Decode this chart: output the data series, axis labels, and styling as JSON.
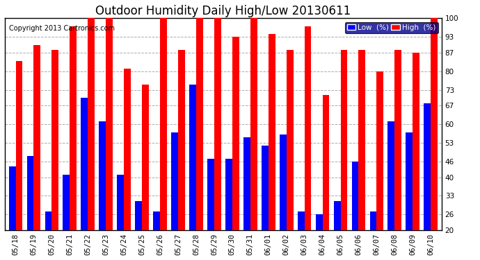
{
  "title": "Outdoor Humidity Daily High/Low 20130611",
  "copyright": "Copyright 2013 Cartronics.com",
  "categories": [
    "05/18",
    "05/19",
    "05/20",
    "05/21",
    "05/22",
    "05/23",
    "05/24",
    "05/25",
    "05/26",
    "05/27",
    "05/28",
    "05/29",
    "05/30",
    "05/31",
    "06/01",
    "06/02",
    "06/03",
    "06/04",
    "06/05",
    "06/06",
    "06/07",
    "06/08",
    "06/09",
    "06/10"
  ],
  "high_values": [
    84,
    90,
    88,
    97,
    100,
    100,
    81,
    75,
    100,
    88,
    100,
    100,
    93,
    100,
    94,
    88,
    97,
    71,
    88,
    88,
    80,
    88,
    87,
    100
  ],
  "low_values": [
    44,
    48,
    27,
    41,
    70,
    61,
    41,
    31,
    27,
    57,
    75,
    47,
    47,
    55,
    52,
    56,
    27,
    26,
    31,
    46,
    27,
    61,
    57,
    68
  ],
  "high_color": "#ff0000",
  "low_color": "#0000ff",
  "bg_color": "#ffffff",
  "plot_bg_color": "#ffffff",
  "grid_color": "#aaaaaa",
  "ylim": [
    20,
    100
  ],
  "ymin": 20,
  "yticks": [
    20,
    26,
    33,
    40,
    46,
    53,
    60,
    67,
    73,
    80,
    87,
    93,
    100
  ],
  "legend_low_label": "Low  (%)",
  "legend_high_label": "High  (%)",
  "title_fontsize": 12,
  "copyright_fontsize": 7,
  "tick_fontsize": 7.5,
  "bar_width": 0.38
}
